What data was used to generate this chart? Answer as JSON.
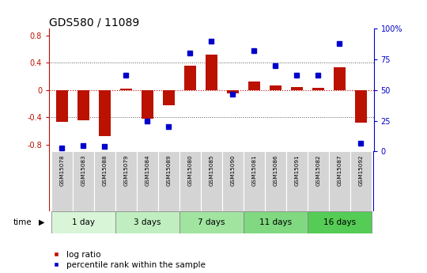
{
  "title": "GDS580 / 11089",
  "samples": [
    "GSM15078",
    "GSM15083",
    "GSM15088",
    "GSM15079",
    "GSM15084",
    "GSM15089",
    "GSM15080",
    "GSM15085",
    "GSM15090",
    "GSM15081",
    "GSM15086",
    "GSM15091",
    "GSM15082",
    "GSM15087",
    "GSM15092"
  ],
  "log_ratio": [
    -0.46,
    -0.44,
    -0.68,
    0.02,
    -0.42,
    -0.22,
    0.36,
    0.52,
    -0.05,
    0.12,
    0.07,
    0.04,
    0.03,
    0.34,
    -0.48
  ],
  "percentile": [
    3,
    5,
    4,
    62,
    25,
    20,
    80,
    90,
    47,
    82,
    70,
    62,
    62,
    88,
    7
  ],
  "groups": [
    {
      "label": "1 day",
      "indices": [
        0,
        1,
        2
      ],
      "color": "#d8f5d8"
    },
    {
      "label": "3 days",
      "indices": [
        3,
        4,
        5
      ],
      "color": "#c0eec0"
    },
    {
      "label": "7 days",
      "indices": [
        6,
        7,
        8
      ],
      "color": "#a0e4a0"
    },
    {
      "label": "11 days",
      "indices": [
        9,
        10,
        11
      ],
      "color": "#80d880"
    },
    {
      "label": "16 days",
      "indices": [
        12,
        13,
        14
      ],
      "color": "#55cc55"
    }
  ],
  "ylim": [
    -0.9,
    0.9
  ],
  "yticks": [
    -0.8,
    -0.4,
    0.0,
    0.4,
    0.8
  ],
  "y2lim": [
    0,
    100
  ],
  "y2ticks": [
    0,
    25,
    50,
    75,
    100
  ],
  "bar_color": "#bb1100",
  "dot_color": "#0000cc",
  "bg_color": "#ffffff",
  "title_fontsize": 10,
  "tick_fontsize": 7,
  "label_fontsize": 7.5,
  "legend_fontsize": 7.5
}
